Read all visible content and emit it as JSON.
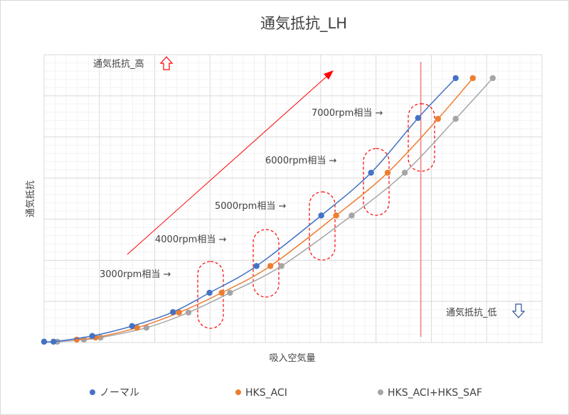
{
  "chart_data": {
    "type": "line",
    "title": "通気抵抗_LH",
    "xlabel": "吸入空気量",
    "ylabel": "通気抵抗",
    "xlim": [
      0,
      9
    ],
    "ylim": [
      0,
      7
    ],
    "grid": true,
    "legend_position": "bottom",
    "series": [
      {
        "name": "ノーマル",
        "color": "#4472c4",
        "x": [
          0,
          0.17,
          0.87,
          1.59,
          2.33,
          2.99,
          3.84,
          5.01,
          5.91,
          6.76,
          7.44
        ],
        "y": [
          0.02,
          0.02,
          0.16,
          0.4,
          0.74,
          1.21,
          1.86,
          3.09,
          4.13,
          5.46,
          6.43
        ]
      },
      {
        "name": "HKS_ACI",
        "color": "#ed7d31",
        "x": [
          0.59,
          0.93,
          1.68,
          2.44,
          3.21,
          4.09,
          5.28,
          6.21,
          7.12,
          7.75
        ],
        "y": [
          0.07,
          0.12,
          0.36,
          0.73,
          1.21,
          1.86,
          3.09,
          4.13,
          5.44,
          6.43
        ]
      },
      {
        "name": "HKS_ACI+HKS_SAF",
        "color": "#a5a5a5",
        "x": [
          0,
          0.24,
          0.72,
          1.02,
          1.85,
          2.61,
          3.36,
          4.29,
          5.56,
          6.52,
          7.44,
          8.11
        ],
        "y": [
          0.02,
          0.02,
          0.07,
          0.12,
          0.36,
          0.73,
          1.21,
          1.86,
          3.09,
          4.13,
          5.44,
          6.43
        ]
      }
    ],
    "reference_line_x": 6.81,
    "annotations": {
      "rpm": [
        "3000rpm相当 →",
        "4000rpm相当 →",
        "5000rpm相当 →",
        "6000rpm相当 →",
        "7000rpm相当 →"
      ],
      "high": "通気抵抗_高",
      "low": "通気抵抗_低"
    },
    "accent_color": "#ff0000"
  }
}
